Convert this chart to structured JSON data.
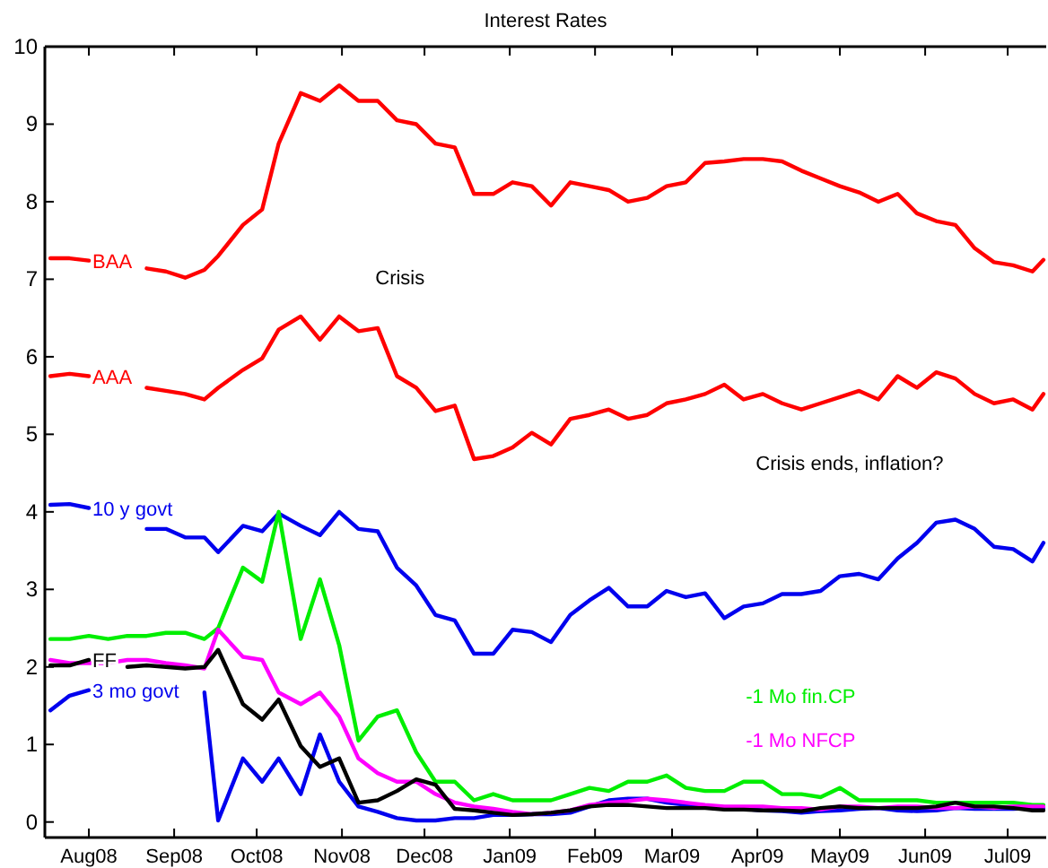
{
  "chart_data": {
    "type": "line",
    "title": "Interest Rates",
    "grid": false,
    "line_style": "solid",
    "marker": "none",
    "annotations": [
      "Crisis",
      "Crisis ends, inflation?"
    ],
    "x": [
      "2008-07-18",
      "2008-07-25",
      "2008-08-01",
      "2008-08-08",
      "2008-08-15",
      "2008-08-22",
      "2008-08-29",
      "2008-09-05",
      "2008-09-12",
      "2008-09-17",
      "2008-09-26",
      "2008-10-03",
      "2008-10-09",
      "2008-10-17",
      "2008-10-24",
      "2008-10-31",
      "2008-11-07",
      "2008-11-14",
      "2008-11-21",
      "2008-11-28",
      "2008-12-05",
      "2008-12-12",
      "2008-12-19",
      "2008-12-26",
      "2009-01-02",
      "2009-01-09",
      "2009-01-16",
      "2009-01-23",
      "2009-01-30",
      "2009-02-06",
      "2009-02-13",
      "2009-02-20",
      "2009-02-27",
      "2009-03-06",
      "2009-03-13",
      "2009-03-20",
      "2009-03-27",
      "2009-04-03",
      "2009-04-10",
      "2009-04-17",
      "2009-04-24",
      "2009-05-01",
      "2009-05-08",
      "2009-05-15",
      "2009-05-22",
      "2009-05-29",
      "2009-06-05",
      "2009-06-12",
      "2009-06-19",
      "2009-06-26",
      "2009-07-03",
      "2009-07-10",
      "2009-07-14"
    ],
    "xlim": [
      "2008-07-16",
      "2009-07-15"
    ],
    "xticks": [
      {
        "value": "2008-08-01",
        "label": "Aug08"
      },
      {
        "value": "2008-09-01",
        "label": "Sep08"
      },
      {
        "value": "2008-10-01",
        "label": "Oct08"
      },
      {
        "value": "2008-11-01",
        "label": "Nov08"
      },
      {
        "value": "2008-12-01",
        "label": "Dec08"
      },
      {
        "value": "2009-01-01",
        "label": "Jan09"
      },
      {
        "value": "2009-02-01",
        "label": "Feb09"
      },
      {
        "value": "2009-03-01",
        "label": "Mar09"
      },
      {
        "value": "2009-04-01",
        "label": "Apr09"
      },
      {
        "value": "2009-05-01",
        "label": "May09"
      },
      {
        "value": "2009-06-01",
        "label": "Jun09"
      },
      {
        "value": "2009-07-01",
        "label": "Jul09"
      }
    ],
    "ylim": [
      -0.2,
      10
    ],
    "yticks": [
      0,
      1,
      2,
      3,
      4,
      5,
      6,
      7,
      8,
      9,
      10
    ],
    "series": [
      {
        "name": "BAA",
        "color": "#ff0000",
        "values": [
          7.27,
          7.27,
          7.24,
          null,
          null,
          7.14,
          7.1,
          7.02,
          7.12,
          7.3,
          7.7,
          7.9,
          8.75,
          9.4,
          9.3,
          9.5,
          9.3,
          9.3,
          9.05,
          9.0,
          8.75,
          8.7,
          8.1,
          8.1,
          8.25,
          8.2,
          7.95,
          8.25,
          8.2,
          8.15,
          8.0,
          8.05,
          8.2,
          8.25,
          8.5,
          8.52,
          8.55,
          8.55,
          8.52,
          8.4,
          8.3,
          8.2,
          8.12,
          8.0,
          8.1,
          7.85,
          7.75,
          7.7,
          7.4,
          7.22,
          7.18,
          7.1,
          7.25
        ]
      },
      {
        "name": "AAA",
        "color": "#ff0000",
        "values": [
          5.75,
          5.78,
          5.75,
          null,
          null,
          5.6,
          5.56,
          5.52,
          5.45,
          5.6,
          5.83,
          5.98,
          6.35,
          6.52,
          6.22,
          6.52,
          6.33,
          6.37,
          5.75,
          5.6,
          5.3,
          5.37,
          4.68,
          4.72,
          4.83,
          5.02,
          4.87,
          5.2,
          5.25,
          5.32,
          5.2,
          5.25,
          5.4,
          5.45,
          5.52,
          5.64,
          5.45,
          5.52,
          5.4,
          5.32,
          5.4,
          5.48,
          5.56,
          5.45,
          5.75,
          5.6,
          5.8,
          5.72,
          5.52,
          5.4,
          5.45,
          5.32,
          5.52
        ]
      },
      {
        "name": "10 y govt",
        "color": "#0000ee",
        "values": [
          4.09,
          4.1,
          4.05,
          null,
          null,
          3.78,
          3.78,
          3.67,
          3.67,
          3.48,
          3.82,
          3.75,
          3.98,
          3.82,
          3.7,
          4.0,
          3.78,
          3.75,
          3.28,
          3.05,
          2.67,
          2.6,
          2.17,
          2.17,
          2.48,
          2.45,
          2.32,
          2.67,
          2.86,
          3.02,
          2.78,
          2.78,
          2.98,
          2.9,
          2.95,
          2.63,
          2.78,
          2.82,
          2.94,
          2.94,
          2.98,
          3.17,
          3.2,
          3.13,
          3.4,
          3.6,
          3.86,
          3.9,
          3.78,
          3.55,
          3.52,
          3.36,
          3.6
        ]
      },
      {
        "name": "3 mo govt",
        "color": "#0000ee",
        "values": [
          1.44,
          1.63,
          1.7,
          null,
          null,
          null,
          null,
          null,
          1.67,
          0.02,
          0.82,
          0.52,
          0.82,
          0.36,
          1.13,
          0.52,
          0.2,
          0.13,
          0.05,
          0.02,
          0.02,
          0.05,
          0.05,
          0.09,
          0.09,
          0.1,
          0.1,
          0.12,
          0.2,
          0.28,
          0.3,
          0.3,
          0.25,
          0.22,
          0.2,
          0.18,
          0.17,
          0.15,
          0.14,
          0.12,
          0.14,
          0.15,
          0.17,
          0.18,
          0.15,
          0.14,
          0.15,
          0.18,
          0.17,
          0.17,
          0.17,
          0.18,
          0.18
        ]
      },
      {
        "name": "-1 Mo fin.CP",
        "color": "#00ee00",
        "values": [
          2.36,
          2.36,
          2.4,
          2.36,
          2.4,
          2.4,
          2.44,
          2.44,
          2.36,
          2.5,
          3.28,
          3.1,
          4.0,
          2.36,
          3.13,
          2.28,
          1.05,
          1.36,
          1.44,
          0.9,
          0.52,
          0.52,
          0.28,
          0.36,
          0.28,
          0.28,
          0.28,
          0.36,
          0.44,
          0.4,
          0.52,
          0.52,
          0.6,
          0.44,
          0.4,
          0.4,
          0.52,
          0.52,
          0.36,
          0.36,
          0.32,
          0.44,
          0.28,
          0.28,
          0.28,
          0.28,
          0.25,
          0.25,
          0.25,
          0.25,
          0.25,
          0.22,
          0.22
        ]
      },
      {
        "name": "-1 Mo NFCP",
        "color": "#ff00ff",
        "values": [
          2.09,
          2.05,
          2.05,
          2.05,
          2.09,
          2.09,
          2.05,
          2.02,
          1.98,
          2.48,
          2.13,
          2.09,
          1.67,
          1.52,
          1.67,
          1.36,
          0.82,
          0.63,
          0.52,
          0.52,
          0.36,
          0.25,
          0.2,
          0.17,
          0.13,
          0.1,
          0.12,
          0.15,
          0.22,
          0.25,
          0.27,
          0.3,
          0.28,
          0.25,
          0.22,
          0.2,
          0.2,
          0.2,
          0.18,
          0.18,
          0.16,
          0.2,
          0.2,
          0.18,
          0.2,
          0.2,
          0.18,
          0.18,
          0.2,
          0.18,
          0.2,
          0.2,
          0.2
        ]
      },
      {
        "name": "FF",
        "color": "#000000",
        "values": [
          2.02,
          2.02,
          2.09,
          null,
          2.0,
          2.02,
          2.0,
          1.98,
          2.0,
          2.22,
          1.52,
          1.32,
          1.58,
          0.98,
          0.71,
          0.82,
          0.25,
          0.28,
          0.4,
          0.55,
          0.48,
          0.17,
          0.15,
          0.12,
          0.09,
          0.1,
          0.12,
          0.15,
          0.2,
          0.22,
          0.22,
          0.2,
          0.18,
          0.18,
          0.18,
          0.16,
          0.16,
          0.15,
          0.15,
          0.14,
          0.18,
          0.2,
          0.18,
          0.18,
          0.18,
          0.18,
          0.2,
          0.25,
          0.2,
          0.2,
          0.18,
          0.15,
          0.15
        ]
      }
    ]
  }
}
